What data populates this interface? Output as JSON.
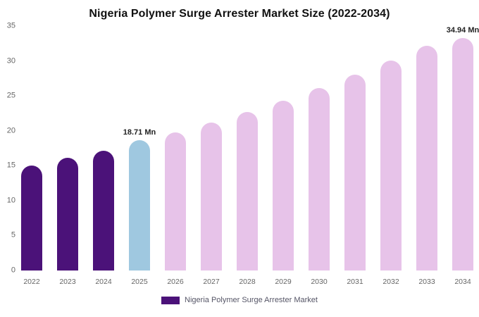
{
  "chart_data": {
    "type": "bar",
    "title": "Nigeria Polymer Surge Arrester Market Size (2022-2034)",
    "categories": [
      "2022",
      "2023",
      "2024",
      "2025",
      "2026",
      "2027",
      "2028",
      "2029",
      "2030",
      "2031",
      "2032",
      "2033",
      "2034"
    ],
    "values": [
      15.0,
      16.1,
      17.2,
      18.71,
      19.8,
      21.2,
      22.7,
      24.3,
      26.1,
      28.0,
      30.1,
      32.2,
      34.94
    ],
    "unit": "Mn",
    "xlabel": "",
    "ylabel": "",
    "ylim": [
      0,
      35
    ],
    "yticks": [
      0,
      5,
      10,
      15,
      20,
      25,
      30,
      35
    ],
    "grid": false,
    "legend": {
      "label": "Nigeria Polymer Surge Arrester Market",
      "color": "#4b1279",
      "position": "bottom"
    },
    "annotations": [
      {
        "category": "2025",
        "text": "18.71 Mn"
      },
      {
        "category": "2034",
        "text": "34.94 Mn"
      }
    ],
    "bar_colors": [
      "#4b1279",
      "#4b1279",
      "#4b1279",
      "#9fc8e0",
      "#e7c3e9",
      "#e7c3e9",
      "#e7c3e9",
      "#e7c3e9",
      "#e7c3e9",
      "#e7c3e9",
      "#e7c3e9",
      "#e7c3e9",
      "#e7c3e9"
    ],
    "colors_meaning": {
      "historical": "#4b1279",
      "base_year": "#9fc8e0",
      "forecast": "#e7c3e9"
    }
  }
}
